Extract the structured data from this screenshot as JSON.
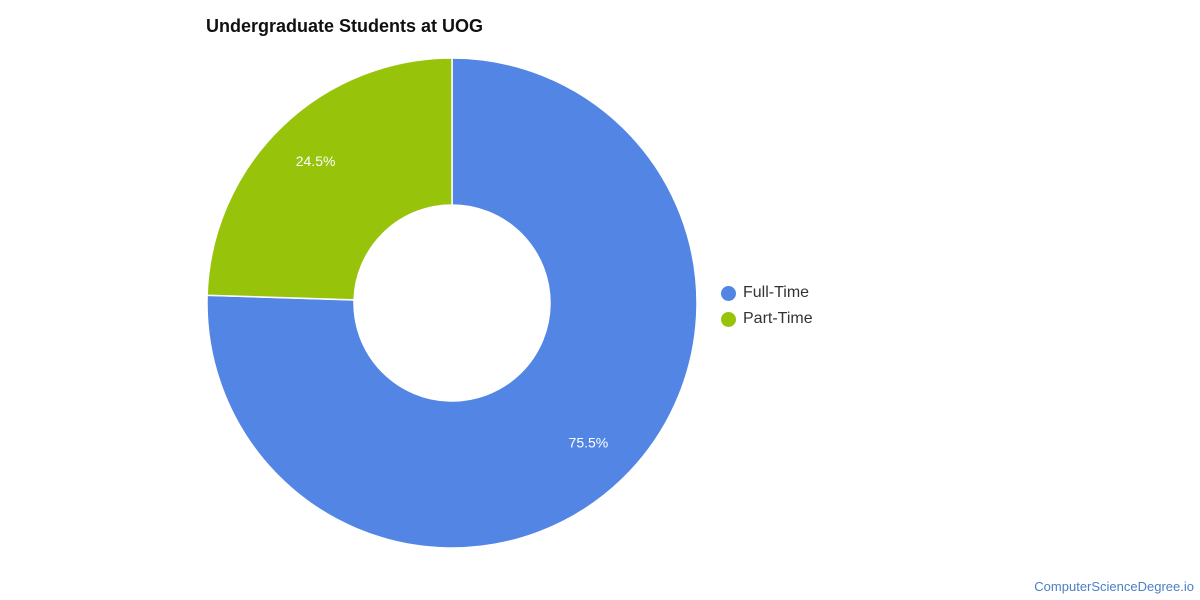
{
  "chart_data": {
    "type": "pie",
    "title": "Undergraduate Students at UOG",
    "donut": true,
    "slices": [
      {
        "label": "Full-Time",
        "value": 75.5,
        "value_label": "75.5%",
        "color": "#5386e4"
      },
      {
        "label": "Part-Time",
        "value": 24.5,
        "value_label": "24.5%",
        "color": "#97c30a"
      }
    ],
    "legend": {
      "position": "right"
    }
  },
  "watermark": "ComputerScienceDegree.io"
}
